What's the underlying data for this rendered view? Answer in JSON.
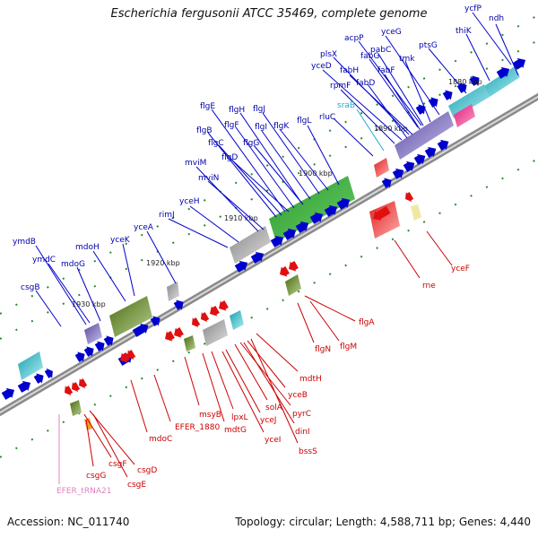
{
  "title": "Escherichia fergusonii ATCC 35469, complete genome",
  "footer": {
    "accession": "Accession: NC_011740",
    "summary": "Topology: circular; Length: 4,588,711 bp; Genes: 4,440"
  },
  "colors": {
    "backbone": "#8a8a8a",
    "forward_gene": "#0000cc",
    "reverse_gene": "#e01010",
    "forward_label": "#0000aa",
    "reverse_label": "#cc0000",
    "rna_label": "#22aacc",
    "trna_label": "#e080c0",
    "tick": "#2a8a2a"
  },
  "ticks": [
    "1880 kbp",
    "1890 kbp",
    "1900 kbp",
    "1910 kbp",
    "1920 kbp",
    "1930 kbp"
  ],
  "forward_labels": [
    "ycfP",
    "ndh",
    "thiK",
    "ptsG",
    "yceG",
    "acpP",
    "fabG",
    "tmk",
    "plsX",
    "pabC",
    "yceD",
    "fabH",
    "fabF",
    "rpmF",
    "fabD",
    "sraB",
    "rluC",
    "flgL",
    "flgK",
    "flgJ",
    "flgI",
    "flgH",
    "flgE",
    "flgF",
    "flgG",
    "flgB",
    "flgC",
    "flgD",
    "mviM",
    "mviN",
    "yceH",
    "rimJ",
    "yceA",
    "yceK",
    "mdoH",
    "ymdB",
    "ymdC",
    "mdoG",
    "csgB"
  ],
  "reverse_labels": [
    "yceF",
    "rne",
    "flgA",
    "flgN",
    "flgM",
    "mdtH",
    "yceB",
    "pyrC",
    "solA",
    "dinI",
    "yceJ",
    "bssS",
    "yceI",
    "lpxL",
    "mdtG",
    "msyB",
    "EFER_1880",
    "mdoC",
    "csgD",
    "csgF",
    "csgE",
    "csgG",
    "EFER_tRNA21"
  ]
}
